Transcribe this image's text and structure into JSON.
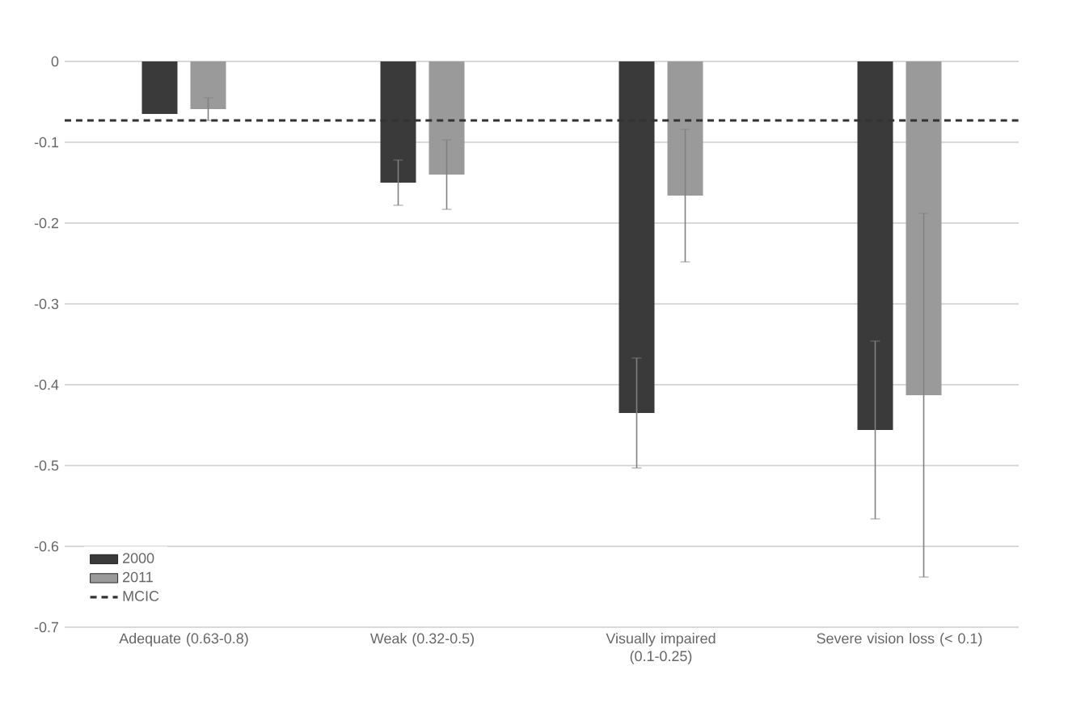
{
  "chart_data": {
    "type": "bar",
    "categories": [
      "Adequate (0.63-0.8)",
      "Weak (0.32-0.5)",
      "Visually impaired (0.1-0.25)",
      "Severe vision loss (< 0.1)"
    ],
    "series": [
      {
        "name": "2000",
        "color": "#3a3a3a",
        "values": [
          -0.065,
          -0.15,
          -0.435,
          -0.456
        ],
        "errors": [
          null,
          0.028,
          0.068,
          0.11
        ]
      },
      {
        "name": "2011",
        "color": "#9a9a9a",
        "values": [
          -0.059,
          -0.14,
          -0.166,
          -0.413
        ],
        "errors": [
          0.014,
          0.043,
          0.082,
          0.225
        ]
      }
    ],
    "ylim": [
      -0.7,
      0
    ],
    "yticks": [
      0,
      -0.1,
      -0.2,
      -0.3,
      -0.4,
      -0.5,
      -0.6,
      -0.7
    ],
    "ref_lines": [
      {
        "axis": "y",
        "value": -0.073,
        "label": "MCIC",
        "color": "#333333",
        "line_style": "dashed"
      }
    ],
    "grid": "y",
    "legend": "bottom left"
  }
}
